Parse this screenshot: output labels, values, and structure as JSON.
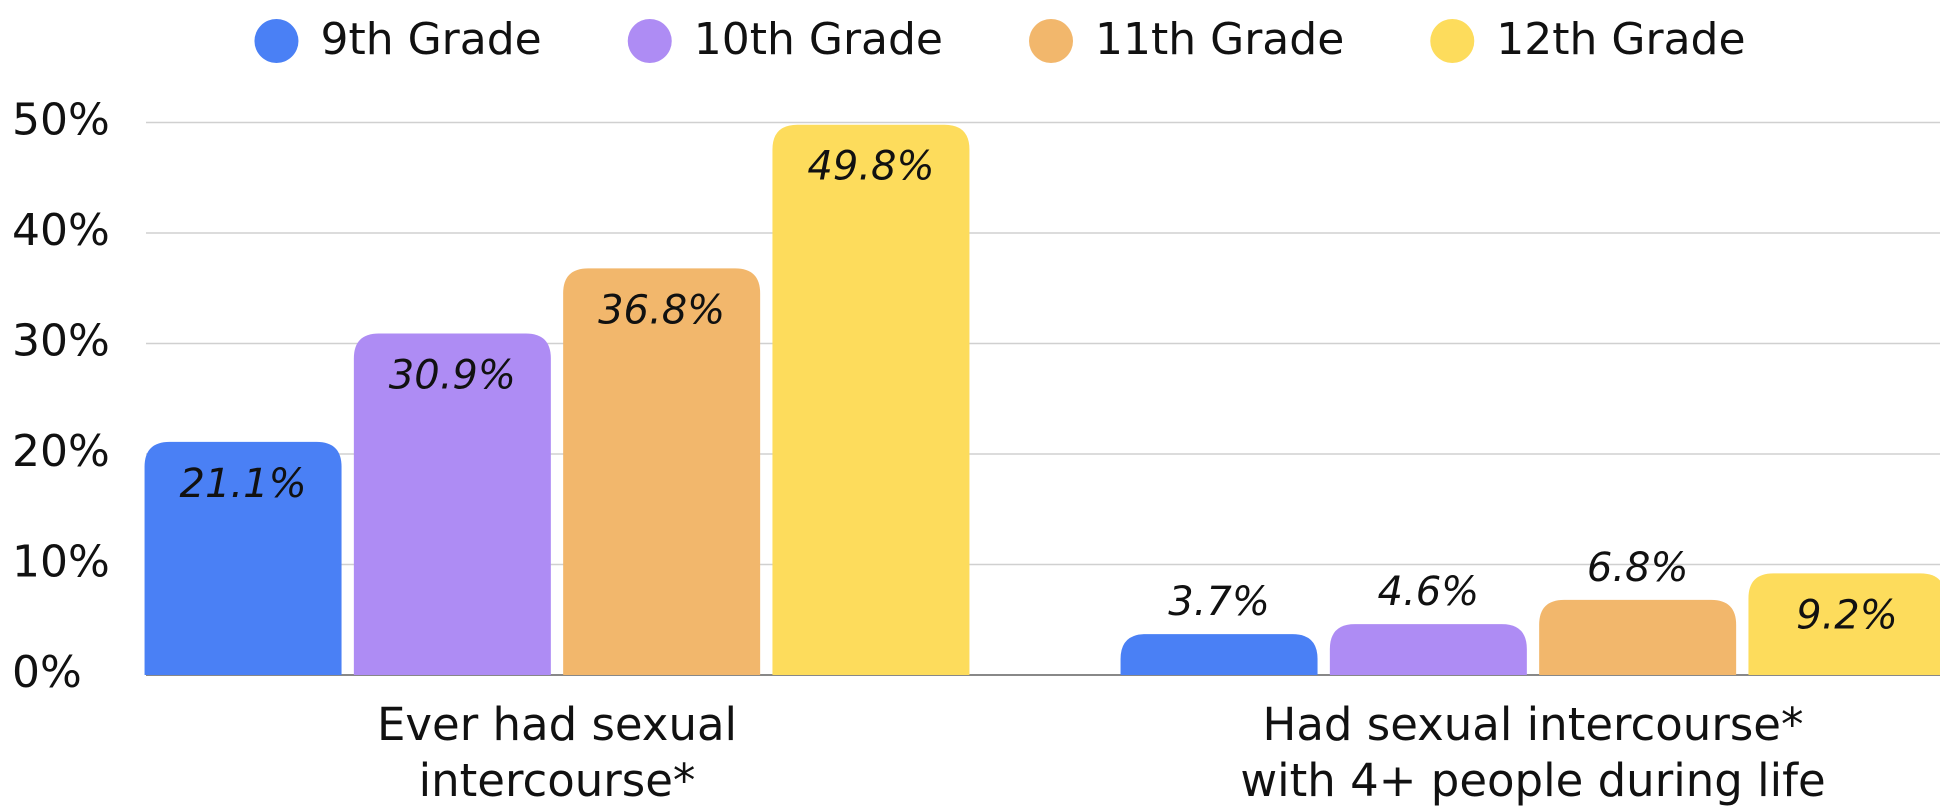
{
  "chart_data": {
    "type": "bar",
    "categories": [
      "Ever had sexual intercourse*",
      "Had sexual intercourse* with 4+ people during life"
    ],
    "series": [
      {
        "name": "9th Grade",
        "color": "#4a80f5",
        "values": [
          21.1,
          3.7
        ],
        "value_labels": [
          "21.1%",
          "3.7%"
        ]
      },
      {
        "name": "10th Grade",
        "color": "#ae8cf4",
        "values": [
          30.9,
          4.6
        ],
        "value_labels": [
          "30.9%",
          "4.6%"
        ]
      },
      {
        "name": "11th Grade",
        "color": "#f2b76c",
        "values": [
          36.8,
          6.8
        ],
        "value_labels": [
          "36.8%",
          "6.8%"
        ]
      },
      {
        "name": "12th Grade",
        "color": "#fddc5c",
        "values": [
          49.8,
          9.2
        ],
        "value_labels": [
          "49.8%",
          "9.2%"
        ]
      }
    ],
    "ylim": [
      0,
      50
    ],
    "yticks": [
      {
        "value": 0,
        "label": "0%"
      },
      {
        "value": 10,
        "label": "10%"
      },
      {
        "value": 20,
        "label": "20%"
      },
      {
        "value": 30,
        "label": "30%"
      },
      {
        "value": 40,
        "label": "40%"
      },
      {
        "value": 50,
        "label": "50%"
      }
    ],
    "grid": true,
    "legend": "top"
  }
}
